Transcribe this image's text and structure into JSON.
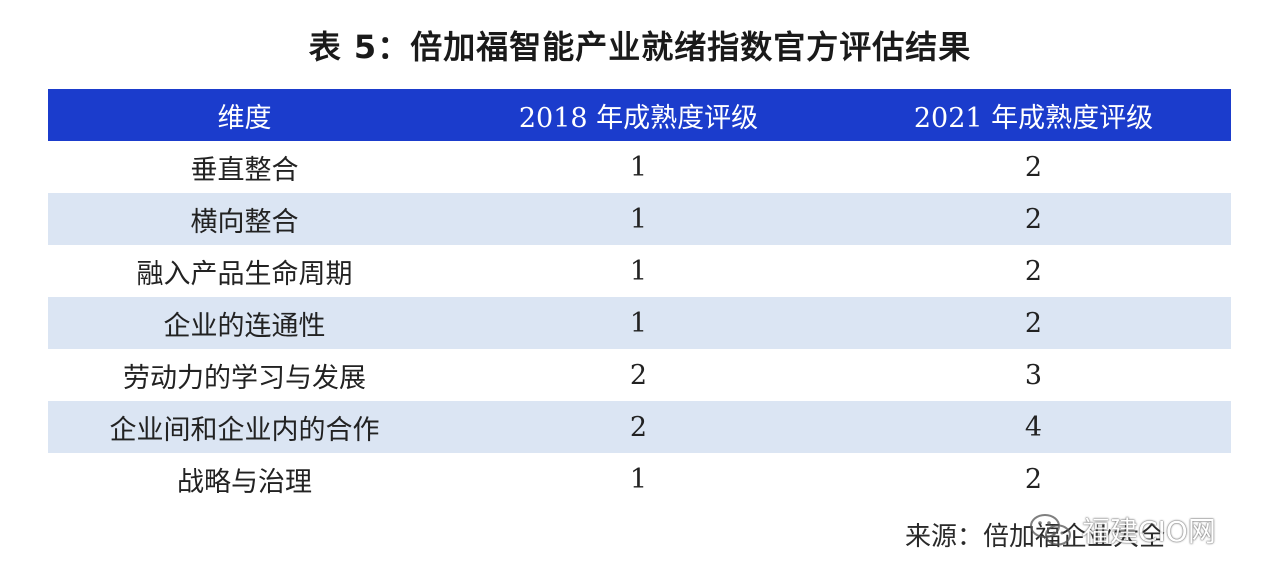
{
  "title": "表 5：倍加福智能产业就绪指数官方评估结果",
  "table": {
    "headers": [
      "维度",
      "2018 年成熟度评级",
      "2021 年成熟度评级"
    ],
    "rows": [
      {
        "dimension": "垂直整合",
        "y2018": "1",
        "y2021": "2"
      },
      {
        "dimension": "横向整合",
        "y2018": "1",
        "y2021": "2"
      },
      {
        "dimension": "融入产品生命周期",
        "y2018": "1",
        "y2021": "2"
      },
      {
        "dimension": "企业的连通性",
        "y2018": "1",
        "y2021": "2"
      },
      {
        "dimension": "劳动力的学习与发展",
        "y2018": "2",
        "y2021": "3"
      },
      {
        "dimension": "企业间和企业内的合作",
        "y2018": "2",
        "y2021": "4"
      },
      {
        "dimension": "战略与治理",
        "y2018": "1",
        "y2021": "2"
      }
    ]
  },
  "source": "来源：倍加福企业大全",
  "watermark": {
    "icon": "wechat-icon",
    "text": "福建CIO网"
  },
  "colors": {
    "header_bg": "#1b3ccc",
    "header_text": "#ffffff",
    "stripe_bg": "#dbe5f3"
  }
}
